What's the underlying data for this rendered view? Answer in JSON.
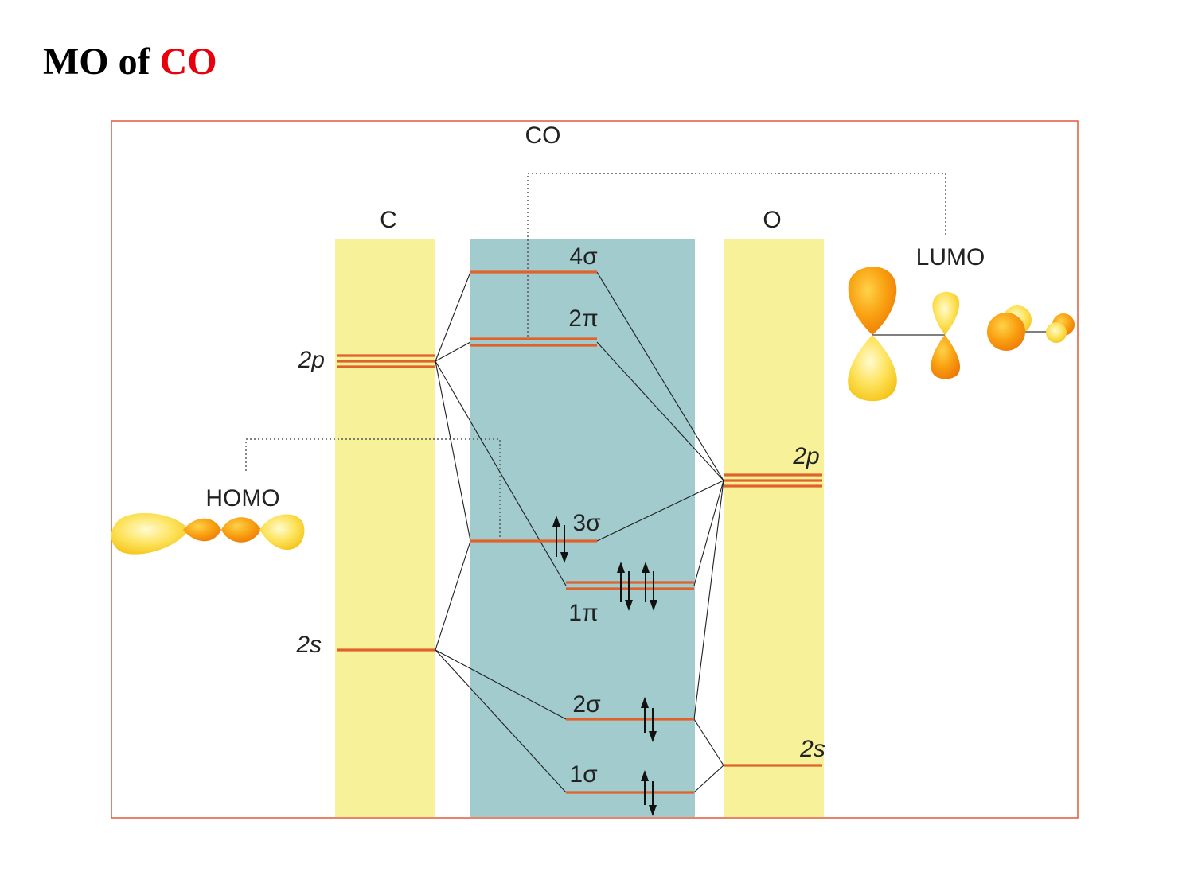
{
  "title": {
    "prefix": "MO of ",
    "molecule": "CO"
  },
  "diagram": {
    "molecule_label": "CO",
    "atom_left": "C",
    "atom_right": "O",
    "left_levels": {
      "p": "2p",
      "s": "2s"
    },
    "right_levels": {
      "p": "2p",
      "s": "2s"
    },
    "mo_labels": {
      "s4": "4σ",
      "p2": "2π",
      "s3": "3σ",
      "p1": "1π",
      "s2": "2σ",
      "s1": "1σ"
    },
    "homo": "HOMO",
    "lumo": "LUMO"
  },
  "colors": {
    "atom_column": "#f7f19a",
    "mo_column": "#a1cbcc",
    "level": "#e0622a",
    "frame": "#e05a3a",
    "title_accent": "#e8000c"
  }
}
